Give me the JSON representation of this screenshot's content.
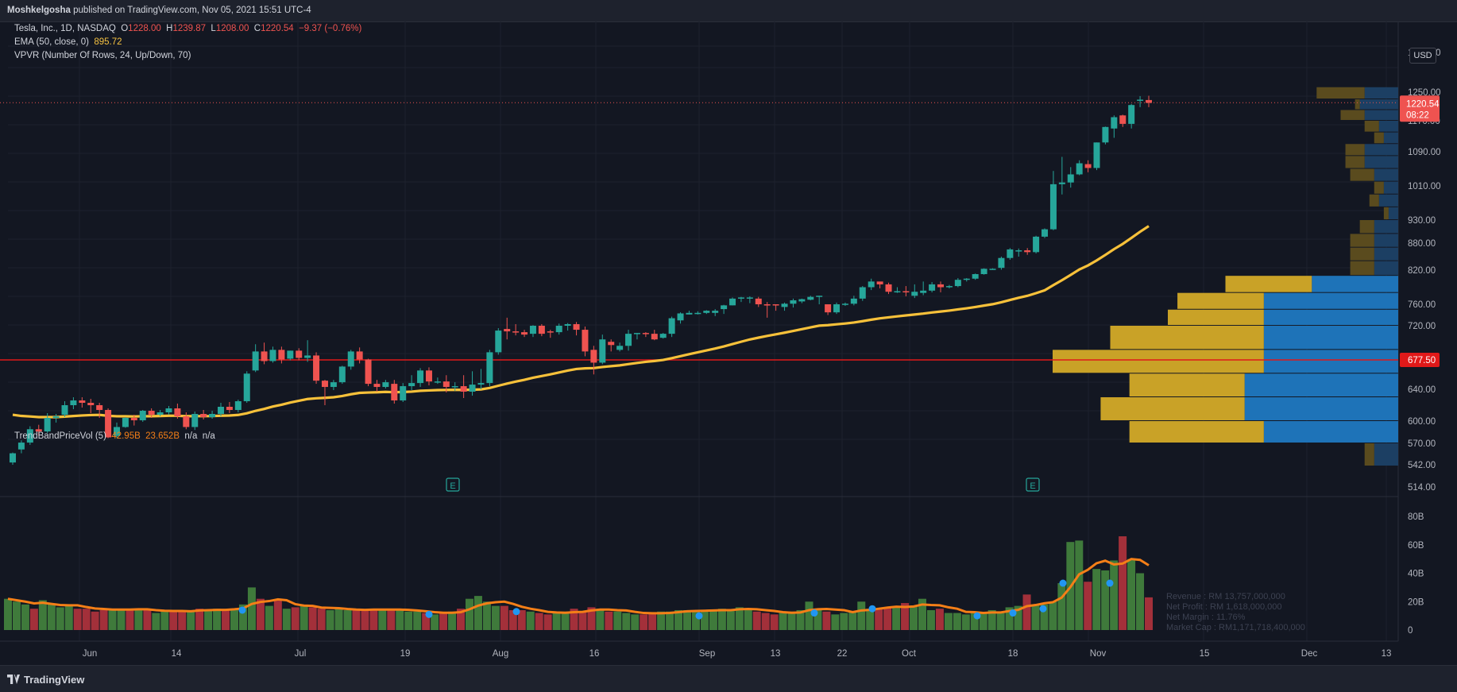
{
  "publish": {
    "author": "Moshkelgosha",
    "text": "published on TradingView.com, Nov 05, 2021 15:51 UTC-4"
  },
  "legend": {
    "symbol": "Tesla, Inc., 1D, NASDAQ",
    "o_label": "O",
    "o": "1228.00",
    "h_label": "H",
    "h": "1239.87",
    "l_label": "L",
    "l": "1208.00",
    "c_label": "C",
    "c": "1220.54",
    "change": "−9.37 (−0.76%)",
    "ema_label": "EMA (50, close, 0)",
    "ema_value": "895.72",
    "vpvr_label": "VPVR (Number Of Rows, 24, Up/Down, 70)",
    "trend_label": "TrendBandPriceVol (5)",
    "trend_v1": "42.95B",
    "trend_v2": "23.652B",
    "trend_v3": "n/a",
    "trend_v4": "n/a"
  },
  "currency_button": "USD",
  "price_axis": {
    "ticks": [
      "1330.00",
      "1250.00",
      "1170.00",
      "1090.00",
      "1010.00",
      "930.00",
      "880.00",
      "820.00",
      "760.00",
      "720.00",
      "640.00",
      "600.00",
      "570.00",
      "542.00",
      "514.00"
    ],
    "last_price_label": "1220.54",
    "countdown_label": "08:22",
    "hline_label": "677.50"
  },
  "volume_axis": {
    "ticks": [
      "80B",
      "60B",
      "40B",
      "20B",
      "0"
    ]
  },
  "time_axis": {
    "labels": [
      "Jun",
      "14",
      "Jul",
      "19",
      "Aug",
      "16",
      "Sep",
      "13",
      "22",
      "Oct",
      "18",
      "Nov",
      "15",
      "Dec",
      "13"
    ]
  },
  "earnings_markers": [
    "E",
    "E"
  ],
  "fundamentals": {
    "revenue": "Revenue : RM 13,757,000,000",
    "net_profit": "Net Profit : RM 1,618,000,000",
    "net_margin": "Net Margin : 11.76%",
    "market_cap": "Market Cap : RM1,171,718,400,000"
  },
  "footer": {
    "brand": "TradingView"
  },
  "colors": {
    "background": "#131722",
    "up": "#26a69a",
    "down": "#ef5350",
    "ema": "#f7c13a",
    "hline": "#e01919",
    "vol_up": "#3f7a3b",
    "vol_down": "#a3303a",
    "vpvr_up": "#c9a227",
    "vpvr_down": "#1e73b8",
    "trend": "#f57f17",
    "dot": "#2196f3"
  },
  "chart_data": {
    "type": "candlestick",
    "symbol": "Tesla, Inc., 1D, NASDAQ",
    "price_range": [
      500,
      1340
    ],
    "horizontal_line": 677.5,
    "last_close": 1220.54,
    "daily": [
      [
        545,
        557,
        542,
        558
      ],
      [
        562,
        571,
        557,
        574
      ],
      [
        571,
        589,
        568,
        593
      ],
      [
        589,
        586,
        580,
        595
      ],
      [
        586,
        604,
        584,
        610
      ],
      [
        604,
        606,
        598,
        609
      ],
      [
        608,
        620,
        605,
        625
      ],
      [
        620,
        626,
        615,
        630
      ],
      [
        626,
        623,
        617,
        630
      ],
      [
        623,
        620,
        610,
        628
      ],
      [
        620,
        614,
        604,
        623
      ],
      [
        614,
        578,
        577,
        616
      ],
      [
        580,
        592,
        577,
        598
      ],
      [
        592,
        604,
        591,
        605
      ],
      [
        604,
        601,
        594,
        608
      ],
      [
        601,
        613,
        599,
        614
      ],
      [
        613,
        608,
        604,
        616
      ],
      [
        608,
        611,
        606,
        614
      ],
      [
        611,
        616,
        608,
        619
      ],
      [
        616,
        606,
        603,
        622
      ],
      [
        606,
        592,
        589,
        611
      ],
      [
        592,
        609,
        588,
        612
      ],
      [
        609,
        605,
        602,
        614
      ],
      [
        605,
        609,
        603,
        613
      ],
      [
        609,
        618,
        606,
        623
      ],
      [
        618,
        614,
        610,
        624
      ],
      [
        614,
        625,
        611,
        627
      ],
      [
        625,
        660,
        623,
        663
      ],
      [
        664,
        688,
        662,
        697
      ],
      [
        688,
        676,
        672,
        699
      ],
      [
        676,
        690,
        674,
        694
      ],
      [
        690,
        678,
        673,
        694
      ],
      [
        679,
        689,
        677,
        689
      ],
      [
        689,
        680,
        677,
        692
      ],
      [
        680,
        683,
        675,
        702
      ],
      [
        683,
        651,
        647,
        687
      ],
      [
        651,
        643,
        620,
        652
      ],
      [
        643,
        649,
        639,
        652
      ],
      [
        649,
        669,
        647,
        670
      ],
      [
        669,
        688,
        665,
        690
      ],
      [
        688,
        678,
        673,
        693
      ],
      [
        678,
        647,
        644,
        679
      ],
      [
        647,
        643,
        637,
        652
      ],
      [
        643,
        649,
        641,
        652
      ],
      [
        647,
        626,
        622,
        652
      ],
      [
        626,
        644,
        624,
        648
      ],
      [
        644,
        648,
        639,
        658
      ],
      [
        648,
        664,
        643,
        667
      ],
      [
        664,
        650,
        645,
        668
      ],
      [
        650,
        650,
        647,
        655
      ],
      [
        650,
        643,
        636,
        658
      ],
      [
        643,
        644,
        638,
        649
      ],
      [
        644,
        637,
        629,
        658
      ],
      [
        637,
        646,
        632,
        663
      ],
      [
        646,
        648,
        640,
        666
      ],
      [
        648,
        687,
        644,
        690
      ],
      [
        687,
        714,
        684,
        717
      ],
      [
        716,
        713,
        703,
        735
      ],
      [
        713,
        712,
        708,
        723
      ],
      [
        712,
        709,
        706,
        715
      ],
      [
        710,
        720,
        706,
        721
      ],
      [
        720,
        710,
        707,
        723
      ],
      [
        713,
        712,
        705,
        715
      ],
      [
        712,
        720,
        709,
        724
      ],
      [
        720,
        723,
        714,
        725
      ],
      [
        723,
        715,
        708,
        727
      ],
      [
        715,
        688,
        682,
        719
      ],
      [
        690,
        674,
        659,
        695
      ],
      [
        674,
        703,
        672,
        709
      ],
      [
        700,
        696,
        688,
        703
      ],
      [
        690,
        695,
        688,
        699
      ],
      [
        695,
        710,
        689,
        715
      ],
      [
        710,
        711,
        703,
        711
      ],
      [
        711,
        710,
        706,
        712
      ],
      [
        710,
        703,
        702,
        715
      ],
      [
        705,
        710,
        704,
        711
      ],
      [
        710,
        734,
        706,
        737
      ],
      [
        730,
        743,
        724,
        745
      ],
      [
        741,
        744,
        741,
        748
      ],
      [
        744,
        744,
        741,
        747
      ],
      [
        744,
        748,
        742,
        749
      ],
      [
        744,
        748,
        738,
        751
      ],
      [
        751,
        758,
        742,
        759
      ],
      [
        758,
        770,
        758,
        772
      ],
      [
        770,
        772,
        764,
        773
      ],
      [
        772,
        772,
        762,
        774
      ],
      [
        770,
        760,
        755,
        773
      ],
      [
        760,
        759,
        735,
        764
      ],
      [
        760,
        759,
        748,
        760
      ],
      [
        755,
        761,
        748,
        763
      ],
      [
        761,
        767,
        754,
        770
      ],
      [
        765,
        769,
        762,
        770
      ],
      [
        768,
        773,
        767,
        775
      ],
      [
        773,
        775,
        760,
        775
      ],
      [
        760,
        745,
        740,
        760
      ],
      [
        745,
        760,
        742,
        763
      ],
      [
        760,
        761,
        757,
        763
      ],
      [
        761,
        770,
        758,
        775
      ],
      [
        770,
        790,
        766,
        792
      ],
      [
        790,
        800,
        785,
        805
      ],
      [
        800,
        795,
        788,
        799
      ],
      [
        795,
        782,
        778,
        798
      ],
      [
        782,
        783,
        780,
        790
      ],
      [
        783,
        782,
        774,
        792
      ],
      [
        775,
        782,
        771,
        795
      ],
      [
        780,
        784,
        776,
        800
      ],
      [
        784,
        795,
        781,
        799
      ],
      [
        795,
        790,
        781,
        800
      ],
      [
        790,
        792,
        788,
        794
      ],
      [
        792,
        803,
        790,
        806
      ],
      [
        803,
        805,
        800,
        806
      ],
      [
        805,
        813,
        803,
        814
      ],
      [
        813,
        823,
        812,
        824
      ],
      [
        823,
        823,
        821,
        824
      ],
      [
        825,
        847,
        821,
        850
      ],
      [
        847,
        866,
        843,
        869
      ],
      [
        864,
        864,
        850,
        868
      ],
      [
        864,
        860,
        854,
        869
      ],
      [
        860,
        894,
        857,
        896
      ],
      [
        894,
        910,
        891,
        912
      ],
      [
        910,
        1014,
        908,
        1045
      ],
      [
        1014,
        1018,
        990,
        1078
      ],
      [
        1018,
        1037,
        1006,
        1054
      ],
      [
        1037,
        1063,
        1035,
        1070
      ],
      [
        1061,
        1052,
        1042,
        1070
      ],
      [
        1052,
        1114,
        1047,
        1114
      ],
      [
        1114,
        1154,
        1109,
        1155
      ],
      [
        1150,
        1180,
        1126,
        1185
      ],
      [
        1185,
        1162,
        1154,
        1187
      ],
      [
        1162,
        1214,
        1150,
        1217
      ],
      [
        1228,
        1229,
        1208,
        1239
      ],
      [
        1228,
        1220,
        1208,
        1239.87
      ]
    ],
    "ema50_last": 895.72,
    "volume_profile_rows": [
      {
        "price_from": 540,
        "price_to": 570,
        "up": 1.0,
        "down": 2.5
      },
      {
        "price_from": 570,
        "price_to": 600,
        "up": 14,
        "down": 14
      },
      {
        "price_from": 600,
        "price_to": 630,
        "up": 15,
        "down": 16
      },
      {
        "price_from": 630,
        "price_to": 660,
        "up": 12,
        "down": 16
      },
      {
        "price_from": 660,
        "price_to": 690,
        "up": 22,
        "down": 14
      },
      {
        "price_from": 690,
        "price_to": 720,
        "up": 16,
        "down": 14
      },
      {
        "price_from": 720,
        "price_to": 750,
        "up": 10,
        "down": 14
      },
      {
        "price_from": 750,
        "price_to": 780,
        "up": 9,
        "down": 14
      },
      {
        "price_from": 780,
        "price_to": 810,
        "up": 9,
        "down": 9
      },
      {
        "price_from": 810,
        "price_to": 840,
        "up": 2.5,
        "down": 2.5
      },
      {
        "price_from": 840,
        "price_to": 870,
        "up": 2.5,
        "down": 2.5
      },
      {
        "price_from": 870,
        "price_to": 900,
        "up": 2.5,
        "down": 2.5
      },
      {
        "price_from": 900,
        "price_to": 930,
        "up": 1.5,
        "down": 2.5
      },
      {
        "price_from": 930,
        "price_to": 960,
        "up": 0.5,
        "down": 1.0
      },
      {
        "price_from": 960,
        "price_to": 990,
        "up": 1.0,
        "down": 2.0
      },
      {
        "price_from": 990,
        "price_to": 1020,
        "up": 1.0,
        "down": 1.5
      },
      {
        "price_from": 1020,
        "price_to": 1050,
        "up": 2.5,
        "down": 2.5
      },
      {
        "price_from": 1050,
        "price_to": 1080,
        "up": 2.0,
        "down": 3.5
      },
      {
        "price_from": 1080,
        "price_to": 1110,
        "up": 2.0,
        "down": 3.5
      },
      {
        "price_from": 1110,
        "price_to": 1140,
        "up": 1.0,
        "down": 1.5
      },
      {
        "price_from": 1140,
        "price_to": 1170,
        "up": 1.5,
        "down": 2.0
      },
      {
        "price_from": 1170,
        "price_to": 1200,
        "up": 2.5,
        "down": 3.5
      },
      {
        "price_from": 1200,
        "price_to": 1230,
        "up": 0.5,
        "down": 4.0
      },
      {
        "price_from": 1230,
        "price_to": 1260,
        "up": 5.0,
        "down": 3.5
      }
    ],
    "volume_billions": [
      22,
      20,
      18,
      15,
      21,
      18,
      16,
      17,
      15,
      15,
      13,
      14,
      15,
      15,
      15,
      14,
      14,
      12,
      13,
      14,
      14,
      13,
      15,
      14,
      15,
      14,
      15,
      18,
      30,
      22,
      17,
      21,
      15,
      16,
      17,
      16,
      15,
      14,
      15,
      14,
      14,
      14,
      15,
      15,
      14,
      14,
      13,
      13,
      12,
      11,
      12,
      13,
      15,
      22,
      24,
      20,
      17,
      17,
      14,
      14,
      13,
      12,
      11,
      12,
      13,
      15,
      13,
      16,
      15,
      13,
      13,
      12,
      11,
      11,
      12,
      13,
      13,
      14,
      14,
      13,
      14,
      14,
      15,
      14,
      16,
      15,
      13,
      12,
      11,
      12,
      13,
      14,
      20,
      14,
      13,
      11,
      12,
      13,
      20,
      15,
      15,
      16,
      16,
      19,
      17,
      22,
      14,
      15,
      12,
      12,
      11,
      13,
      12,
      14,
      12,
      16,
      17,
      25,
      18,
      18,
      20,
      33,
      62,
      63,
      34,
      43,
      42,
      49,
      66,
      50,
      40,
      23
    ]
  }
}
